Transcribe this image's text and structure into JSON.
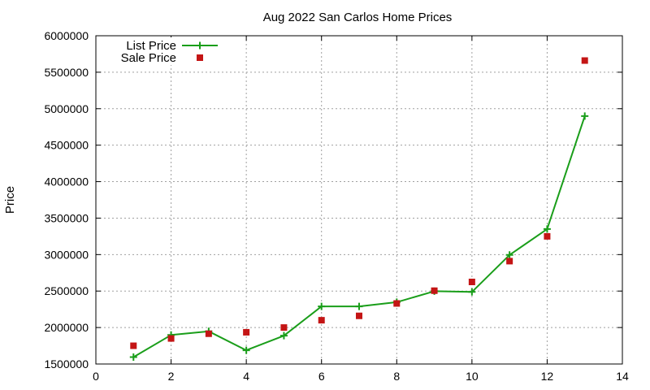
{
  "chart_data": {
    "type": "line",
    "title": "Aug 2022 San Carlos Home Prices",
    "xlabel": "",
    "ylabel": "Price",
    "xlim": [
      0,
      14
    ],
    "ylim": [
      1500000,
      6000000
    ],
    "xticks": [
      0,
      2,
      4,
      6,
      8,
      10,
      12,
      14
    ],
    "yticks": [
      1500000,
      2000000,
      2500000,
      3000000,
      3500000,
      4000000,
      4500000,
      5000000,
      5500000,
      6000000
    ],
    "xtick_labels": [
      "0",
      "2",
      "4",
      "6",
      "8",
      "10",
      "12",
      "14"
    ],
    "ytick_labels": [
      "1500000",
      "2000000",
      "2500000",
      "3000000",
      "3500000",
      "4000000",
      "4500000",
      "5000000",
      "5500000",
      "6000000"
    ],
    "grid": true,
    "legend_position": "top-left",
    "series": [
      {
        "name": "List Price",
        "style": "line-points",
        "marker": "plus",
        "color": "#1a9e1a",
        "x": [
          1,
          2,
          3,
          4,
          5,
          6,
          7,
          8,
          9,
          10,
          11,
          12,
          13
        ],
        "y": [
          1595000,
          1898000,
          1948000,
          1688000,
          1888000,
          2290000,
          2290000,
          2348000,
          2498000,
          2488000,
          2995000,
          3350000,
          4898000
        ]
      },
      {
        "name": "Sale Price",
        "style": "points",
        "marker": "square",
        "color": "#c41515",
        "x": [
          1,
          2,
          3,
          4,
          5,
          6,
          7,
          8,
          9,
          10,
          11,
          12,
          13
        ],
        "y": [
          1750000,
          1850000,
          1915000,
          1935000,
          2000000,
          2100000,
          2160000,
          2330000,
          2505000,
          2625000,
          2910000,
          3250000,
          5660000
        ]
      }
    ]
  }
}
